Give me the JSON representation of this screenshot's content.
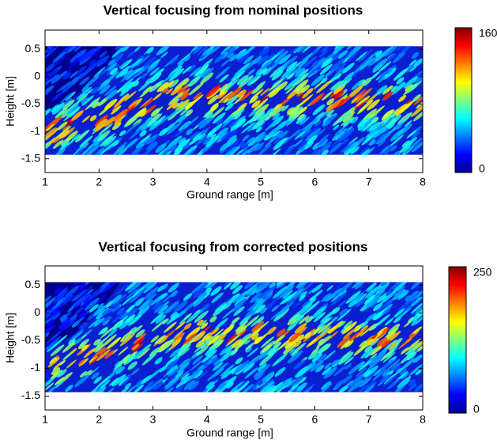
{
  "chart_data": [
    {
      "type": "heatmap",
      "title": "Vertical focusing from nominal positions",
      "x_label": "Ground range [m]",
      "y_label": "Height [m]",
      "xlim": [
        1,
        8
      ],
      "ylim": [
        -1.75,
        0.85
      ],
      "xticks": [
        1,
        2,
        3,
        4,
        5,
        6,
        7,
        8
      ],
      "yticks": [
        0.5,
        0,
        -0.5,
        -1,
        -1.5
      ],
      "clim": [
        0,
        160
      ],
      "cticks": [
        0,
        160
      ],
      "colormap": "jet"
    },
    {
      "type": "heatmap",
      "title": "Vertical focusing from corrected positions",
      "x_label": "Ground range [m]",
      "y_label": "Height [m]",
      "xlim": [
        1,
        8
      ],
      "ylim": [
        -1.75,
        0.85
      ],
      "xticks": [
        1,
        2,
        3,
        4,
        5,
        6,
        7,
        8
      ],
      "yticks": [
        0.5,
        0,
        -0.5,
        -1,
        -1.5
      ],
      "clim": [
        0,
        250
      ],
      "cticks": [
        0,
        250
      ],
      "colormap": "jet"
    }
  ]
}
